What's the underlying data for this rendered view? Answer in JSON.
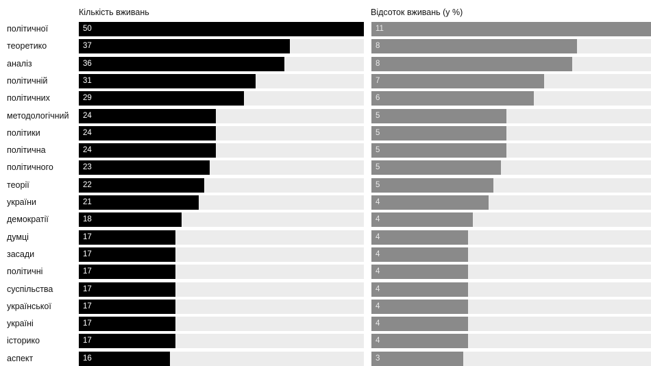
{
  "chart_data": {
    "type": "bar",
    "panels": [
      {
        "title": "Кількість вживань",
        "series_key": "counts",
        "xlim": [
          0,
          50
        ]
      },
      {
        "title": "Відсоток вживань (у %)",
        "series_key": "percents",
        "xlim": [
          0,
          11
        ]
      }
    ],
    "categories": [
      "політичної",
      "теоретико",
      "аналіз",
      "політичній",
      "політичних",
      "методологічний",
      "політики",
      "політична",
      "політичного",
      "теорії",
      "україни",
      "демократії",
      "думці",
      "засади",
      "політичні",
      "суспільства",
      "української",
      "україні",
      "історико",
      "аспект"
    ],
    "counts": [
      50,
      37,
      36,
      31,
      29,
      24,
      24,
      24,
      23,
      22,
      21,
      18,
      17,
      17,
      17,
      17,
      17,
      17,
      17,
      16
    ],
    "percents": [
      11,
      8,
      8,
      7,
      6,
      5,
      5,
      5,
      5,
      5,
      4,
      4,
      4,
      4,
      4,
      4,
      4,
      4,
      4,
      3
    ],
    "percent_bar_lengths": [
      11,
      8.1,
      7.9,
      6.8,
      6.4,
      5.3,
      5.3,
      5.3,
      5.1,
      4.8,
      4.6,
      4.0,
      3.8,
      3.8,
      3.8,
      3.8,
      3.8,
      3.8,
      3.8,
      3.6
    ],
    "colors": {
      "count_bar": "#000000",
      "percent_bar": "#8a8a8a",
      "track": "#ececec"
    }
  }
}
